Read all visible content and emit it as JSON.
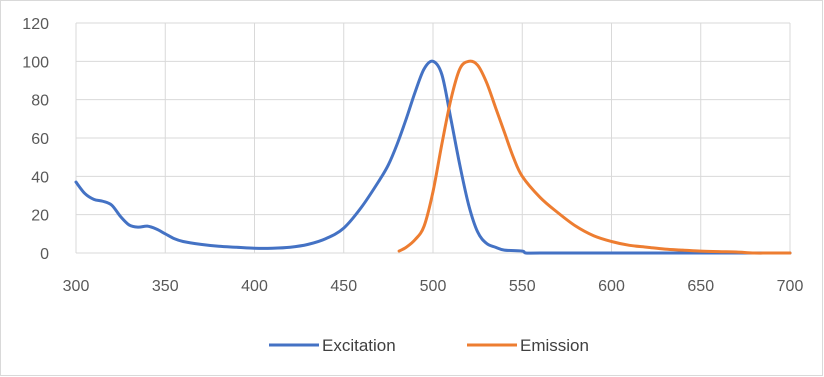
{
  "chart_data": {
    "type": "line",
    "xlim": [
      300,
      700
    ],
    "ylim": [
      0,
      120
    ],
    "x_ticks": [
      300,
      350,
      400,
      450,
      500,
      550,
      600,
      650,
      700
    ],
    "y_ticks": [
      0,
      20,
      40,
      60,
      80,
      100,
      120
    ],
    "grid": true,
    "legend_position": "bottom",
    "series": [
      {
        "name": "Excitation",
        "color": "#4472c4",
        "points": [
          [
            300,
            37
          ],
          [
            305,
            31
          ],
          [
            310,
            28
          ],
          [
            315,
            27
          ],
          [
            320,
            25
          ],
          [
            325,
            19
          ],
          [
            330,
            14.5
          ],
          [
            335,
            13.5
          ],
          [
            340,
            14
          ],
          [
            345,
            12.5
          ],
          [
            350,
            10
          ],
          [
            355,
            7.5
          ],
          [
            360,
            6
          ],
          [
            370,
            4.5
          ],
          [
            380,
            3.5
          ],
          [
            390,
            3
          ],
          [
            400,
            2.5
          ],
          [
            410,
            2.5
          ],
          [
            420,
            3
          ],
          [
            430,
            4.5
          ],
          [
            440,
            7.5
          ],
          [
            450,
            13
          ],
          [
            460,
            24
          ],
          [
            470,
            38
          ],
          [
            475,
            46
          ],
          [
            480,
            57
          ],
          [
            485,
            70
          ],
          [
            490,
            84
          ],
          [
            495,
            96
          ],
          [
            500,
            100
          ],
          [
            505,
            93
          ],
          [
            510,
            70
          ],
          [
            515,
            46
          ],
          [
            520,
            25
          ],
          [
            525,
            11
          ],
          [
            530,
            5
          ],
          [
            535,
            3
          ],
          [
            540,
            1.5
          ],
          [
            550,
            1
          ],
          [
            552,
            0
          ],
          [
            560,
            0
          ],
          [
            600,
            0
          ],
          [
            650,
            0
          ],
          [
            700,
            0
          ]
        ]
      },
      {
        "name": "Emission",
        "color": "#ed7d31",
        "points": [
          [
            481,
            1
          ],
          [
            485,
            3
          ],
          [
            490,
            7
          ],
          [
            495,
            14
          ],
          [
            500,
            32
          ],
          [
            505,
            57
          ],
          [
            510,
            80
          ],
          [
            515,
            96
          ],
          [
            520,
            100
          ],
          [
            525,
            98
          ],
          [
            530,
            89
          ],
          [
            535,
            76
          ],
          [
            540,
            63
          ],
          [
            545,
            50
          ],
          [
            550,
            40
          ],
          [
            560,
            29
          ],
          [
            570,
            21
          ],
          [
            580,
            14
          ],
          [
            590,
            9
          ],
          [
            600,
            6
          ],
          [
            610,
            4
          ],
          [
            620,
            3
          ],
          [
            630,
            2
          ],
          [
            640,
            1.5
          ],
          [
            650,
            1
          ],
          [
            660,
            0.7
          ],
          [
            670,
            0.5
          ],
          [
            680,
            0
          ],
          [
            690,
            0
          ],
          [
            700,
            0
          ]
        ]
      }
    ]
  }
}
